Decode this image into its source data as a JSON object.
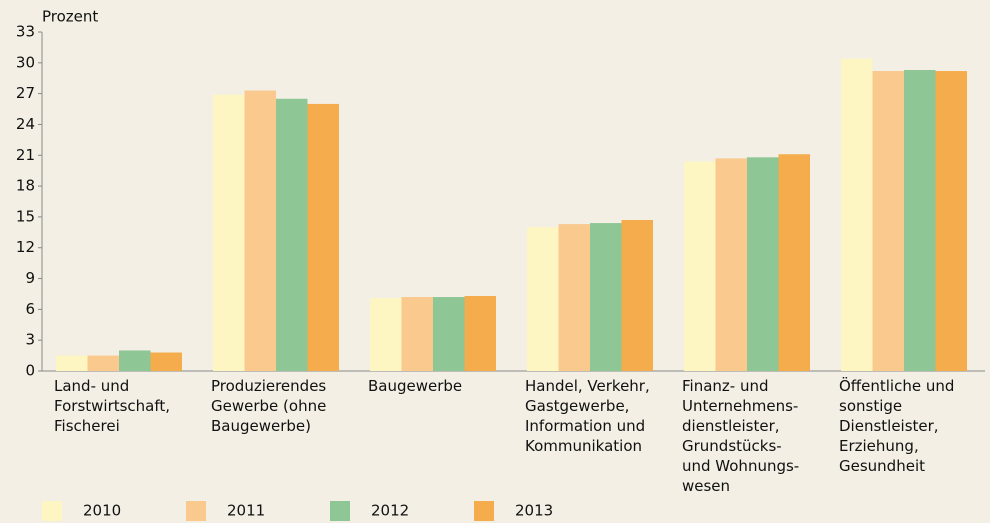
{
  "chart_data": {
    "type": "bar",
    "y_label": "Prozent",
    "categories": [
      "Land- und\nForstwirtschaft,\nFischerei",
      "Produzierendes\nGewerbe (ohne\nBaugewerbe)",
      "Baugewerbe",
      "Handel, Verkehr,\nGastgewerbe,\nInformation und\nKommunikation",
      "Finanz- und\nUnternehmens-\ndienstleister,\nGrundstücks-\nund Wohnungs-\nwesen",
      "Öffentliche und\nsonstige\nDienstleister,\nErziehung,\nGesundheit"
    ],
    "series": [
      {
        "name": "2010",
        "color": "#fdf6c3",
        "values": [
          1.5,
          26.9,
          7.1,
          14.0,
          20.4,
          30.4
        ]
      },
      {
        "name": "2011",
        "color": "#f9c98d",
        "values": [
          1.5,
          27.3,
          7.2,
          14.3,
          20.7,
          29.2
        ]
      },
      {
        "name": "2012",
        "color": "#8fc695",
        "values": [
          2.0,
          26.5,
          7.2,
          14.4,
          20.8,
          29.3
        ]
      },
      {
        "name": "2013",
        "color": "#f5ac4c",
        "values": [
          1.8,
          26.0,
          7.3,
          14.7,
          21.1,
          29.2
        ]
      }
    ],
    "ylim": [
      0,
      33
    ],
    "yticks": [
      0,
      3,
      6,
      9,
      12,
      15,
      18,
      21,
      24,
      27,
      30,
      33
    ],
    "grid": false
  }
}
